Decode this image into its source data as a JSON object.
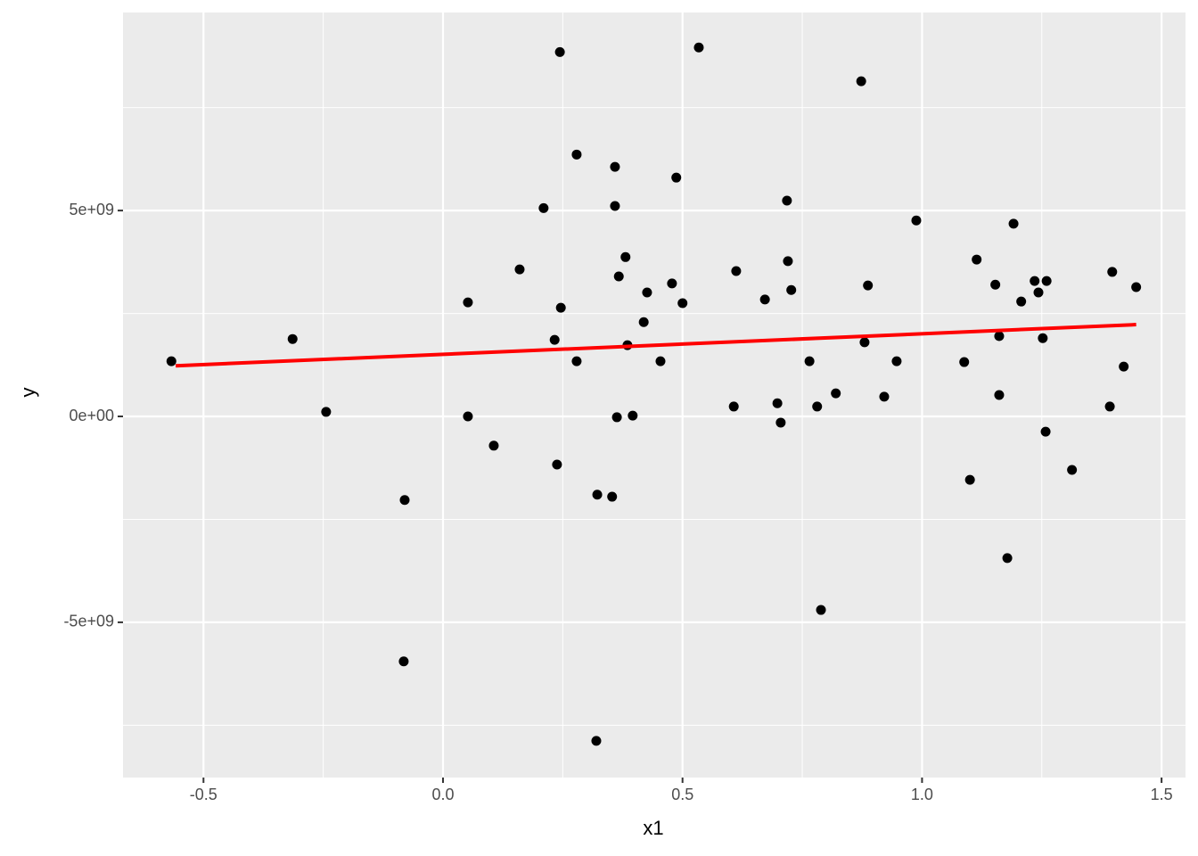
{
  "chart_data": {
    "type": "scatter",
    "x_label": "x1",
    "y_label": "y",
    "xlim": [
      -0.668,
      1.55
    ],
    "ylim": [
      -8770000000.0,
      9810000000.0
    ],
    "xticks": [
      -0.5,
      {
        "value": 0,
        "label": "0.0"
      },
      0.5,
      {
        "value": 1,
        "label": "1.0"
      },
      1.5
    ],
    "yticks": [
      {
        "value": -5000000000.0,
        "label": "-5e+09"
      },
      {
        "value": 0,
        "label": "0e+00"
      },
      {
        "value": 5000000000.0,
        "label": "5e+09"
      }
    ],
    "minor_xticks": [
      -0.25,
      0.25,
      0.75,
      1.25
    ],
    "minor_yticks": [
      -7500000000.0,
      -2500000000.0,
      2500000000.0,
      7500000000.0
    ],
    "grid": true,
    "series": [
      {
        "type": "scatter",
        "color": "#000000",
        "x": [
          -0.567,
          -0.314,
          -0.244,
          -0.08,
          -0.082,
          0.052,
          0.052,
          0.106,
          0.16,
          0.21,
          0.233,
          0.238,
          0.244,
          0.246,
          0.279,
          0.279,
          0.322,
          0.32,
          0.353,
          0.359,
          0.359,
          0.363,
          0.367,
          0.381,
          0.385,
          0.396,
          0.419,
          0.426,
          0.454,
          0.478,
          0.487,
          0.5,
          0.534,
          0.607,
          0.612,
          0.672,
          0.698,
          0.705,
          0.718,
          0.72,
          0.727,
          0.765,
          0.781,
          0.789,
          0.82,
          0.873,
          0.88,
          0.887,
          0.921,
          0.947,
          0.988,
          1.088,
          1.1,
          1.114,
          1.153,
          1.161,
          1.161,
          1.178,
          1.191,
          1.207,
          1.235,
          1.243,
          1.252,
          1.258,
          1.26,
          1.313,
          1.392,
          1.397,
          1.421,
          1.447
        ],
        "values": [
          1340000000.0,
          1880000000.0,
          110000000.0,
          -2030000000.0,
          -5950000000.0,
          2770000000.0,
          0.0,
          -710000000.0,
          3570000000.0,
          5060000000.0,
          1860000000.0,
          -1170000000.0,
          8850000000.0,
          2640000000.0,
          6360000000.0,
          1340000000.0,
          -1900000000.0,
          -7880000000.0,
          -1950000000.0,
          5110000000.0,
          6060000000.0,
          -20000000.0,
          3400000000.0,
          3870000000.0,
          1730000000.0,
          20000000.0,
          2290000000.0,
          3010000000.0,
          1340000000.0,
          3230000000.0,
          5800000000.0,
          2750000000.0,
          8960000000.0,
          240000000.0,
          3530000000.0,
          2840000000.0,
          320000000.0,
          -150000000.0,
          5240000000.0,
          3770000000.0,
          3070000000.0,
          1340000000.0,
          240000000.0,
          -4700000000.0,
          560000000.0,
          8140000000.0,
          1800000000.0,
          3180000000.0,
          480000000.0,
          1340000000.0,
          4760000000.0,
          1320000000.0,
          -1540000000.0,
          3810000000.0,
          3200000000.0,
          1950000000.0,
          520000000.0,
          -3440000000.0,
          4680000000.0,
          2790000000.0,
          3290000000.0,
          3010000000.0,
          1900000000.0,
          -370000000.0,
          3290000000.0,
          -1300000000.0,
          240000000.0,
          3510000000.0,
          1210000000.0,
          3140000000.0
        ]
      },
      {
        "type": "line",
        "color": "#ff0000",
        "x": [
          -0.558,
          1.447
        ],
        "values": [
          1230000000.0,
          2230000000.0
        ]
      }
    ]
  }
}
